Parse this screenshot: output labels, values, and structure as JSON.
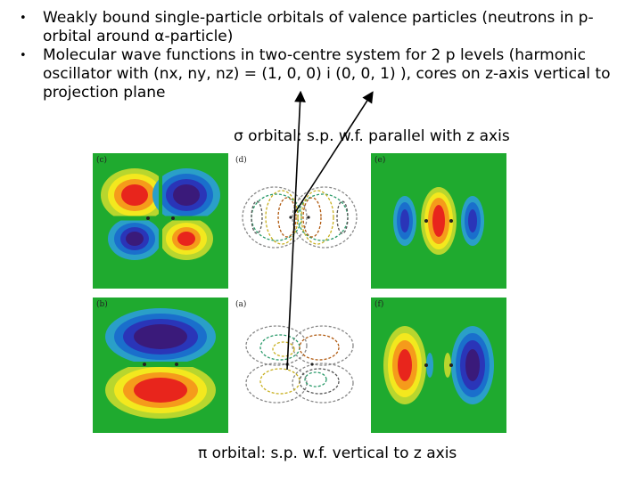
{
  "bullets": [
    "Weakly bound single-particle orbitals of valence particles (neutrons in p-orbital around α-particle)",
    "Molecular wave functions in two-centre system for 2 p levels (harmonic oscillator with (nx, ny, nz) = (1, 0, 0) i (0, 0, 1) ), cores on z-axis vertical to projection plane"
  ],
  "bullet_symbol": "•",
  "sigma_caption": "σ orbital: s.p. w.f. parallel with z axis",
  "pi_caption": "π orbital: s.p. w.f. vertical to z axis",
  "panels": {
    "c": "(c)",
    "d": "(d)",
    "e": "(e)",
    "b": "(b)",
    "a": "(a)",
    "f": "(f)"
  },
  "colors": {
    "background_green": "#1faa2f",
    "arrow": "#000000"
  }
}
